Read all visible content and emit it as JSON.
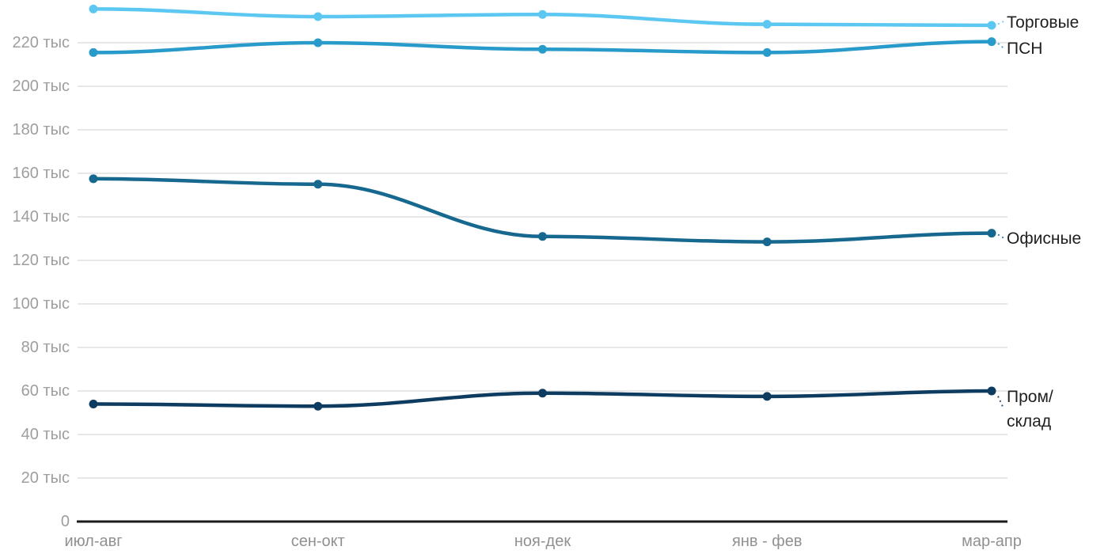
{
  "chart_data": {
    "type": "line",
    "title": "",
    "xlabel": "",
    "ylabel": "",
    "grid": true,
    "legend_position": "right-of-line-end",
    "x_categories": [
      "июл-авг",
      "сен-окт",
      "ноя-дек",
      "янв - фев",
      "мар-апр"
    ],
    "y_ticks": [
      {
        "value": 0,
        "label": "0"
      },
      {
        "value": 20,
        "label": "20 тыс"
      },
      {
        "value": 40,
        "label": "40 тыс"
      },
      {
        "value": 60,
        "label": "60 тыс"
      },
      {
        "value": 80,
        "label": "80 тыс"
      },
      {
        "value": 100,
        "label": "100 тыс"
      },
      {
        "value": 120,
        "label": "120 тыс"
      },
      {
        "value": 140,
        "label": "140 тыс"
      },
      {
        "value": 160,
        "label": "160 тыс"
      },
      {
        "value": 180,
        "label": "180 тыс"
      },
      {
        "value": 200,
        "label": "200 тыс"
      },
      {
        "value": 220,
        "label": "220 тыс"
      }
    ],
    "ylim": [
      0,
      240
    ],
    "y_unit": "тыс",
    "series": [
      {
        "name": "Торговые",
        "label_lines": [
          "Торговые"
        ],
        "color": "#5cc8f2",
        "values": [
          235.5,
          232,
          233,
          228.5,
          228
        ]
      },
      {
        "name": "ПСН",
        "label_lines": [
          "ПСН"
        ],
        "color": "#299bcb",
        "values": [
          215.5,
          220,
          217,
          215.5,
          220.5
        ]
      },
      {
        "name": "Офисные",
        "label_lines": [
          "Офисные"
        ],
        "color": "#16688f",
        "values": [
          157.5,
          155,
          131,
          128.5,
          132.5
        ]
      },
      {
        "name": "Пром/склад",
        "label_lines": [
          "Пром/",
          "склад"
        ],
        "color": "#0e3c61",
        "values": [
          54,
          53,
          59,
          57.5,
          60
        ]
      }
    ],
    "colors": {
      "gridline": "#e7e7e7",
      "axis_line": "#1b1b1b",
      "tick_text": "#9e9e9e",
      "label_text": "#1f1f1f"
    }
  }
}
